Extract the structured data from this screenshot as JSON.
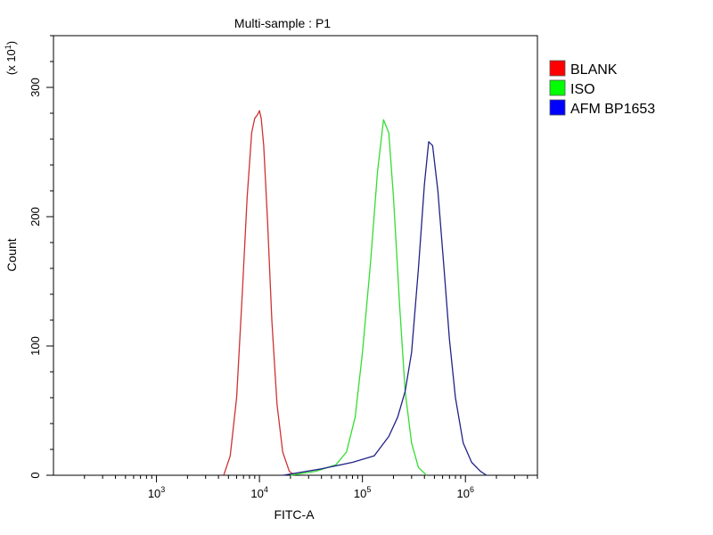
{
  "chart_data": {
    "type": "line",
    "title": "Multi-sample : P1",
    "xlabel": "FITC-A",
    "ylabel": "Count",
    "y_multiplier": "(x 10",
    "y_multiplier_exp": "1",
    "x_scale": "log",
    "xlim": [
      100,
      5000000
    ],
    "ylim": [
      0,
      340
    ],
    "x_ticks": [
      {
        "value": 1000,
        "base": "10",
        "exp": "3"
      },
      {
        "value": 10000,
        "base": "10",
        "exp": "4"
      },
      {
        "value": 100000,
        "base": "10",
        "exp": "5"
      },
      {
        "value": 1000000,
        "base": "10",
        "exp": "6"
      }
    ],
    "y_ticks": [
      {
        "value": 0,
        "label": "0"
      },
      {
        "value": 100,
        "label": "100"
      },
      {
        "value": 200,
        "label": "200"
      },
      {
        "value": 300,
        "label": "300"
      }
    ],
    "grid": false,
    "legend_position": "right",
    "series": [
      {
        "name": "BLANK",
        "color": "#cc3333",
        "legend_color": "#ff0000",
        "x": [
          4500,
          5200,
          6000,
          6800,
          7600,
          8400,
          9000,
          9600,
          10000,
          10400,
          11000,
          12000,
          13200,
          14800,
          16800,
          19500,
          22000
        ],
        "y": [
          0,
          15,
          60,
          140,
          215,
          265,
          276,
          279,
          282,
          276,
          255,
          195,
          120,
          55,
          18,
          3,
          0
        ]
      },
      {
        "name": "ISO",
        "color": "#33dd33",
        "legend_color": "#00ff00",
        "x": [
          20000,
          35000,
          55000,
          70000,
          85000,
          100000,
          120000,
          140000,
          160000,
          180000,
          200000,
          230000,
          260000,
          300000,
          350000,
          420000
        ],
        "y": [
          0,
          3,
          8,
          18,
          45,
          95,
          165,
          235,
          275,
          265,
          215,
          130,
          65,
          25,
          6,
          0
        ]
      },
      {
        "name": "AFM BP1653",
        "color": "#222288",
        "legend_color": "#0000ff",
        "x": [
          17000,
          40000,
          80000,
          130000,
          180000,
          220000,
          260000,
          300000,
          350000,
          400000,
          440000,
          480000,
          540000,
          620000,
          700000,
          800000,
          950000,
          1150000,
          1400000,
          1600000
        ],
        "y": [
          0,
          5,
          10,
          15,
          30,
          45,
          65,
          95,
          160,
          225,
          258,
          255,
          220,
          160,
          105,
          60,
          25,
          10,
          3,
          0
        ]
      }
    ]
  }
}
